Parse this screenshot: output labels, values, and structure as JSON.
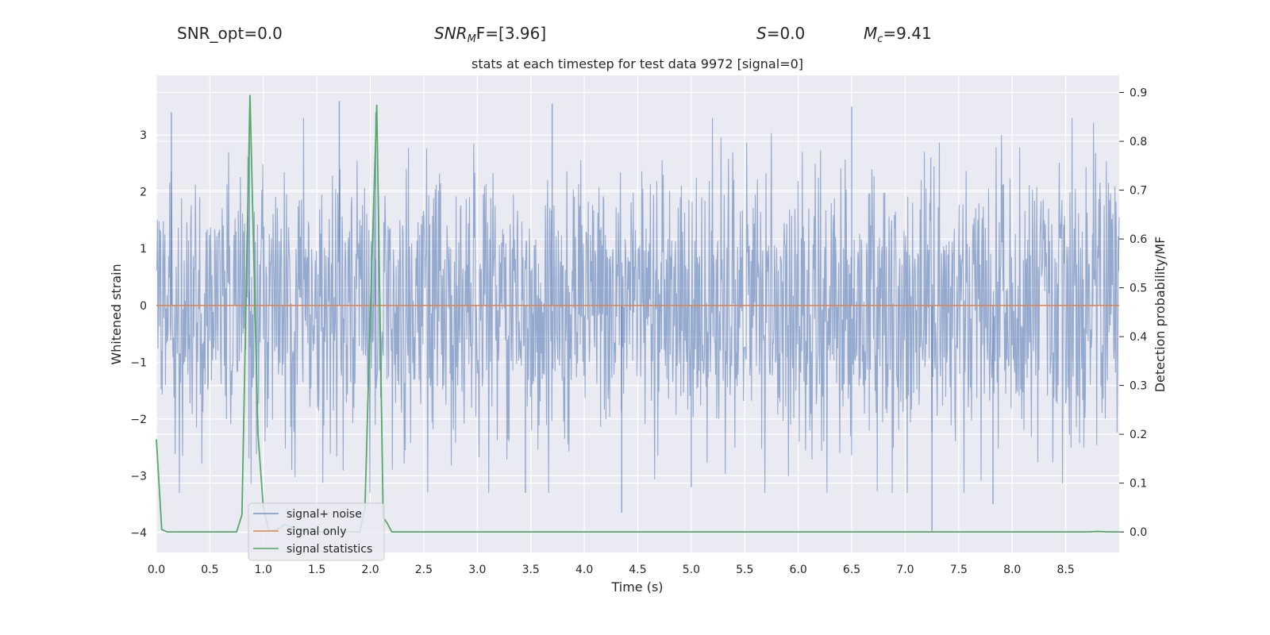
{
  "header": {
    "snr_opt": "SNR_opt=0.0",
    "snr_mf_main": "SNR",
    "snr_mf_sub": "M",
    "snr_mf_tail": "F=[3.96]",
    "s_main": "S",
    "s_tail": "=0.0",
    "mc_main": "M",
    "mc_sub": "c",
    "mc_tail": "=9.41"
  },
  "chart_data": {
    "type": "line",
    "title": "stats at each timestep for test data 9972 [signal=0]",
    "xlabel": "Time (s)",
    "ylabel": "Whitened strain",
    "y2label": "Detection probability/MF",
    "xlim": [
      0.0,
      9.0
    ],
    "ylim": [
      -4.35,
      4.05
    ],
    "y2lim": [
      -0.042,
      0.935
    ],
    "x_ticks": [
      0.0,
      0.5,
      1.0,
      1.5,
      2.0,
      2.5,
      3.0,
      3.5,
      4.0,
      4.5,
      5.0,
      5.5,
      6.0,
      6.5,
      7.0,
      7.5,
      8.0,
      8.5
    ],
    "x_tick_labels": [
      "0.0",
      "0.5",
      "1.0",
      "1.5",
      "2.0",
      "2.5",
      "3.0",
      "3.5",
      "4.0",
      "4.5",
      "5.0",
      "5.5",
      "6.0",
      "6.5",
      "7.0",
      "7.5",
      "8.0",
      "8.5"
    ],
    "y_ticks": [
      3,
      2,
      1,
      0,
      -1,
      -2,
      -3,
      -4
    ],
    "y_tick_labels": [
      "3",
      "2",
      "1",
      "0",
      "−1",
      "−2",
      "−3",
      "−4"
    ],
    "y2_ticks": [
      0.9,
      0.8,
      0.7,
      0.6,
      0.5,
      0.4,
      0.3,
      0.2,
      0.1,
      0.0
    ],
    "y2_tick_labels": [
      "0.9",
      "0.8",
      "0.7",
      "0.6",
      "0.5",
      "0.4",
      "0.3",
      "0.2",
      "0.1",
      "0.0"
    ],
    "grid": true,
    "legend_position": "lower-left",
    "series": [
      {
        "name": "signal+ noise",
        "color": "#4c72b0",
        "axis": "left",
        "kind": "noise",
        "envelope_typical": [
          -2.1,
          2.1
        ],
        "spikes": [
          {
            "x": 0.14,
            "y": 3.4
          },
          {
            "x": 0.87,
            "y": 2.9
          },
          {
            "x": 1.71,
            "y": 3.6
          },
          {
            "x": 2.05,
            "y": 3.4
          },
          {
            "x": 3.7,
            "y": 3.55
          },
          {
            "x": 6.5,
            "y": 3.5
          },
          {
            "x": 7.25,
            "y": -4.0
          },
          {
            "x": 4.35,
            "y": -3.65
          },
          {
            "x": 7.82,
            "y": -3.5
          },
          {
            "x": 3.45,
            "y": -3.3
          },
          {
            "x": 5.0,
            "y": -3.2
          }
        ]
      },
      {
        "name": "signal only",
        "color": "#dd8452",
        "axis": "left",
        "x": [
          0.0,
          9.0
        ],
        "y": [
          0.0,
          0.0
        ]
      },
      {
        "name": "signal statistics",
        "color": "#55a868",
        "axis": "right",
        "x": [
          0.0,
          0.05,
          0.1,
          0.2,
          0.3,
          0.4,
          0.5,
          0.6,
          0.7,
          0.75,
          0.8,
          0.875,
          0.95,
          1.0,
          1.05,
          1.1,
          1.15,
          1.2,
          1.25,
          1.3,
          1.4,
          1.5,
          1.6,
          1.7,
          1.8,
          1.9,
          1.95,
          2.0,
          2.06,
          2.12,
          2.16,
          2.2,
          2.3,
          2.5,
          3.0,
          4.0,
          5.0,
          6.0,
          7.0,
          8.0,
          8.5,
          8.7,
          8.8,
          8.9,
          9.0
        ],
        "y": [
          0.19,
          0.005,
          0.0,
          0.0,
          0.0,
          0.0,
          0.0,
          0.0,
          0.0,
          0.0,
          0.035,
          0.895,
          0.2,
          0.05,
          0.003,
          0.003,
          0.008,
          0.015,
          0.012,
          0.006,
          0.0,
          0.0,
          0.0,
          0.0,
          0.0,
          0.0,
          0.05,
          0.45,
          0.875,
          0.03,
          0.017,
          0.0,
          0.0,
          0.0,
          0.0,
          0.0,
          0.0,
          0.0,
          0.0,
          0.0,
          0.0,
          0.0,
          0.001,
          0.0,
          0.0
        ]
      }
    ]
  }
}
